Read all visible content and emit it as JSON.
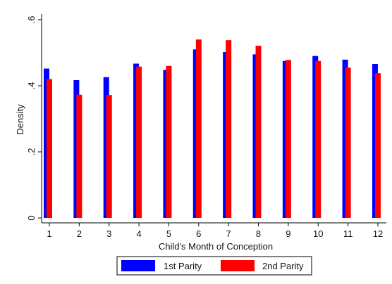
{
  "chart_data": {
    "type": "bar",
    "categories": [
      "1",
      "2",
      "3",
      "4",
      "5",
      "6",
      "7",
      "8",
      "9",
      "10",
      "11",
      "12"
    ],
    "series": [
      {
        "name": "1st Parity",
        "color": "#0000ff",
        "values": [
          0.452,
          0.417,
          0.426,
          0.467,
          0.448,
          0.51,
          0.502,
          0.495,
          0.475,
          0.49,
          0.479,
          0.466
        ]
      },
      {
        "name": "2nd Parity",
        "color": "#ff0000",
        "values": [
          0.42,
          0.373,
          0.372,
          0.458,
          0.46,
          0.54,
          0.538,
          0.521,
          0.478,
          0.475,
          0.455,
          0.438
        ]
      }
    ],
    "xlabel": "Child's Month of Conception",
    "ylabel": "Density",
    "ylim": [
      0,
      0.6
    ],
    "yticks": [
      {
        "value": 0,
        "label": "0"
      },
      {
        "value": 0.2,
        "label": ".2"
      },
      {
        "value": 0.4,
        "label": ".4"
      },
      {
        "value": 0.6,
        "label": ".6"
      }
    ],
    "grid": false,
    "legend_position": "bottom"
  }
}
